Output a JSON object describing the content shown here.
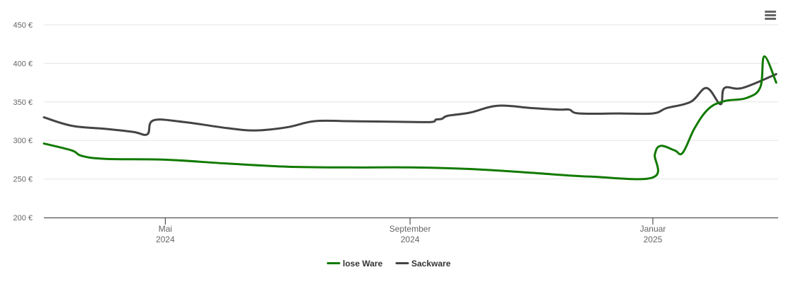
{
  "menu": {
    "icon": "hamburger-menu-icon"
  },
  "chart_data": {
    "type": "line",
    "title": "",
    "xlabel": "",
    "ylabel": "",
    "x_ticks": [
      {
        "date": "2024-05-01",
        "line1": "Mai",
        "line2": "2024"
      },
      {
        "date": "2024-09-01",
        "line1": "September",
        "line2": "2024"
      },
      {
        "date": "2025-01-01",
        "line1": "Januar",
        "line2": "2025"
      }
    ],
    "y_ticks": [
      "200 €",
      "250 €",
      "300 €",
      "350 €",
      "400 €",
      "450 €"
    ],
    "y_tick_values": [
      200,
      250,
      300,
      350,
      400,
      450
    ],
    "xlim": [
      "2024-03-01",
      "2025-03-05"
    ],
    "ylim": [
      200,
      450
    ],
    "grid": true,
    "legend_position": "bottom-center",
    "series": [
      {
        "name": "lose Ware",
        "color": "#117a00",
        "points": [
          [
            "2024-03-01",
            296
          ],
          [
            "2024-03-15",
            287
          ],
          [
            "2024-03-20",
            280
          ],
          [
            "2024-04-01",
            276
          ],
          [
            "2024-05-01",
            275
          ],
          [
            "2024-06-01",
            270
          ],
          [
            "2024-07-01",
            266
          ],
          [
            "2024-08-01",
            265
          ],
          [
            "2024-09-01",
            265
          ],
          [
            "2024-10-01",
            263
          ],
          [
            "2024-11-01",
            258
          ],
          [
            "2024-12-01",
            253
          ],
          [
            "2025-01-01",
            252
          ],
          [
            "2025-01-02",
            282
          ],
          [
            "2025-01-05",
            293
          ],
          [
            "2025-01-12",
            287
          ],
          [
            "2025-01-16",
            284
          ],
          [
            "2025-01-22",
            316
          ],
          [
            "2025-01-29",
            341
          ],
          [
            "2025-02-06",
            351
          ],
          [
            "2025-02-17",
            355
          ],
          [
            "2025-02-24",
            369
          ],
          [
            "2025-02-26",
            409
          ],
          [
            "2025-03-04",
            375
          ]
        ]
      },
      {
        "name": "Sackware",
        "color": "#444444",
        "points": [
          [
            "2024-03-01",
            330
          ],
          [
            "2024-03-15",
            319
          ],
          [
            "2024-04-01",
            315
          ],
          [
            "2024-04-15",
            311
          ],
          [
            "2024-04-22",
            308
          ],
          [
            "2024-04-25",
            326
          ],
          [
            "2024-05-10",
            324
          ],
          [
            "2024-06-01",
            316
          ],
          [
            "2024-06-15",
            313
          ],
          [
            "2024-07-01",
            317
          ],
          [
            "2024-07-15",
            325
          ],
          [
            "2024-08-01",
            325
          ],
          [
            "2024-09-01",
            324
          ],
          [
            "2024-09-12",
            324
          ],
          [
            "2024-09-14",
            327
          ],
          [
            "2024-09-17",
            328
          ],
          [
            "2024-09-20",
            332
          ],
          [
            "2024-10-01",
            336
          ],
          [
            "2024-10-15",
            345
          ],
          [
            "2024-11-01",
            342
          ],
          [
            "2024-11-15",
            340
          ],
          [
            "2024-11-20",
            340
          ],
          [
            "2024-11-25",
            335
          ],
          [
            "2024-12-15",
            335
          ],
          [
            "2025-01-01",
            335
          ],
          [
            "2025-01-08",
            342
          ],
          [
            "2025-01-20",
            350
          ],
          [
            "2025-01-28",
            368
          ],
          [
            "2025-02-04",
            347
          ],
          [
            "2025-02-06",
            368
          ],
          [
            "2025-02-15",
            368
          ],
          [
            "2025-03-04",
            386
          ]
        ]
      }
    ]
  }
}
